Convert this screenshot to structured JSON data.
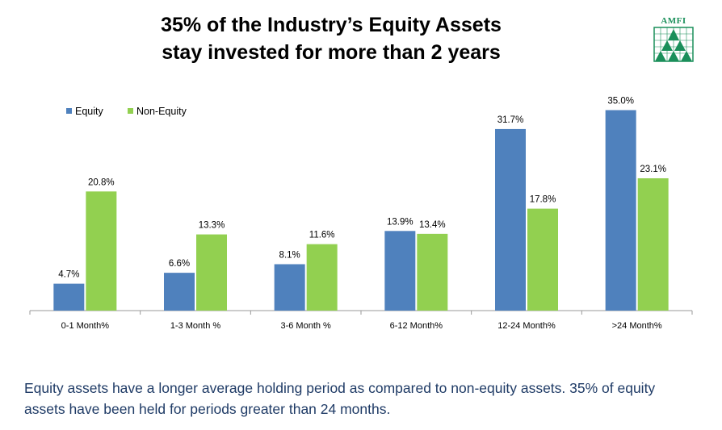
{
  "title_line1": "35% of the Industry’s Equity Assets",
  "title_line2": "stay invested for more than 2 years",
  "logo_text": "AMFI",
  "colors": {
    "equity": "#4f81bd",
    "non_equity": "#92d050",
    "axis": "#999999",
    "logo": "#1a8f5a"
  },
  "chart_data": {
    "type": "bar",
    "categories": [
      "0-1 Month%",
      "1-3 Month %",
      "3-6 Month %",
      "6-12 Month%",
      "12-24 Month%",
      ">24 Month%"
    ],
    "series": [
      {
        "name": "Equity",
        "values": [
          4.7,
          6.6,
          8.1,
          13.9,
          31.7,
          35.0
        ],
        "labels": [
          "4.7%",
          "6.6%",
          "8.1%",
          "13.9%",
          "31.7%",
          "35.0%"
        ]
      },
      {
        "name": "Non-Equity",
        "values": [
          20.8,
          13.3,
          11.6,
          13.4,
          17.8,
          23.1
        ],
        "labels": [
          "20.8%",
          "13.3%",
          "11.6%",
          "13.4%",
          "17.8%",
          "23.1%"
        ]
      }
    ],
    "ylim": [
      0,
      36
    ],
    "grid": false,
    "legend": "top-left"
  },
  "footer_text": "Equity assets have a longer average holding period as compared to non-equity assets. 35% of equity assets have been held for periods greater than 24 months."
}
